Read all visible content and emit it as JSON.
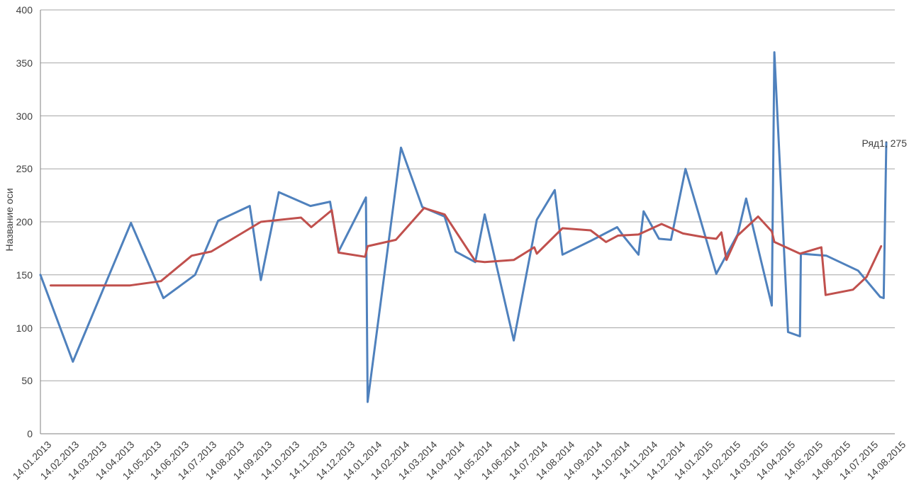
{
  "chart_data": {
    "type": "line",
    "title": "",
    "ylabel": "Название оси",
    "xlabel": "",
    "ylim": [
      0,
      400
    ],
    "y_ticks": [
      0,
      50,
      100,
      150,
      200,
      250,
      300,
      350,
      400
    ],
    "grid": "horizontal",
    "legend": "none",
    "x_axis_type": "date",
    "x_tick_labels": [
      "14.01.2013",
      "14.02.2013",
      "14.03.2013",
      "14.04.2013",
      "14.05.2013",
      "14.06.2013",
      "14.07.2013",
      "14.08.2013",
      "14.09.2013",
      "14.10.2013",
      "14.11.2013",
      "14.12.2013",
      "14.01.2014",
      "14.02.2014",
      "14.03.2014",
      "14.04.2014",
      "14.05.2014",
      "14.06.2014",
      "14.07.2014",
      "14.08.2014",
      "14.09.2014",
      "14.10.2014",
      "14.11.2014",
      "14.12.2014",
      "14.01.2015",
      "14.02.2015",
      "14.03.2015",
      "14.04.2015",
      "14.05.2015",
      "14.06.2015",
      "14.07.2015",
      "14.08.2015"
    ],
    "annotation": {
      "text": "Ряд1; 275",
      "series": "Ряд1",
      "value": 275
    },
    "style": {
      "gridline_color": "#a6a6a6",
      "axis_line_color": "#808080",
      "text_color": "#3f3f3f",
      "background": "#ffffff",
      "line_width": 3
    },
    "series": [
      {
        "name": "Ряд1",
        "color": "#4F81BD",
        "points_xfrac_value": [
          [
            0.0,
            150
          ],
          [
            0.038,
            68
          ],
          [
            0.106,
            199
          ],
          [
            0.144,
            128
          ],
          [
            0.181,
            150
          ],
          [
            0.208,
            201
          ],
          [
            0.245,
            215
          ],
          [
            0.258,
            145
          ],
          [
            0.279,
            228
          ],
          [
            0.316,
            215
          ],
          [
            0.339,
            219
          ],
          [
            0.349,
            172
          ],
          [
            0.381,
            223
          ],
          [
            0.383,
            30
          ],
          [
            0.422,
            270
          ],
          [
            0.447,
            214
          ],
          [
            0.473,
            205
          ],
          [
            0.486,
            172
          ],
          [
            0.509,
            162
          ],
          [
            0.52,
            207
          ],
          [
            0.554,
            88
          ],
          [
            0.581,
            202
          ],
          [
            0.602,
            230
          ],
          [
            0.611,
            169
          ],
          [
            0.644,
            182
          ],
          [
            0.675,
            195
          ],
          [
            0.682,
            187
          ],
          [
            0.7,
            169
          ],
          [
            0.706,
            210
          ],
          [
            0.724,
            184
          ],
          [
            0.738,
            183
          ],
          [
            0.755,
            250
          ],
          [
            0.791,
            151
          ],
          [
            0.816,
            188
          ],
          [
            0.826,
            222
          ],
          [
            0.856,
            121
          ],
          [
            0.859,
            360
          ],
          [
            0.875,
            96
          ],
          [
            0.889,
            92
          ],
          [
            0.89,
            170
          ],
          [
            0.92,
            168
          ],
          [
            0.957,
            154
          ],
          [
            0.983,
            129
          ],
          [
            0.987,
            128
          ],
          [
            0.99,
            275
          ]
        ]
      },
      {
        "name": "",
        "color": "#C0504D",
        "points_xfrac_value": [
          [
            0.012,
            140
          ],
          [
            0.105,
            140
          ],
          [
            0.141,
            144
          ],
          [
            0.177,
            168
          ],
          [
            0.2,
            172
          ],
          [
            0.258,
            200
          ],
          [
            0.305,
            204
          ],
          [
            0.317,
            195
          ],
          [
            0.341,
            211
          ],
          [
            0.349,
            171
          ],
          [
            0.38,
            167
          ],
          [
            0.383,
            177
          ],
          [
            0.416,
            183
          ],
          [
            0.449,
            213
          ],
          [
            0.473,
            207
          ],
          [
            0.509,
            163
          ],
          [
            0.52,
            162
          ],
          [
            0.554,
            164
          ],
          [
            0.578,
            176
          ],
          [
            0.581,
            170
          ],
          [
            0.611,
            194
          ],
          [
            0.644,
            192
          ],
          [
            0.662,
            181
          ],
          [
            0.676,
            187
          ],
          [
            0.7,
            188
          ],
          [
            0.727,
            198
          ],
          [
            0.752,
            189
          ],
          [
            0.78,
            185
          ],
          [
            0.791,
            184
          ],
          [
            0.797,
            190
          ],
          [
            0.803,
            164
          ],
          [
            0.816,
            187
          ],
          [
            0.84,
            205
          ],
          [
            0.856,
            191
          ],
          [
            0.859,
            181
          ],
          [
            0.889,
            170
          ],
          [
            0.914,
            176
          ],
          [
            0.919,
            131
          ],
          [
            0.951,
            136
          ],
          [
            0.967,
            148
          ],
          [
            0.984,
            177
          ]
        ]
      }
    ]
  }
}
